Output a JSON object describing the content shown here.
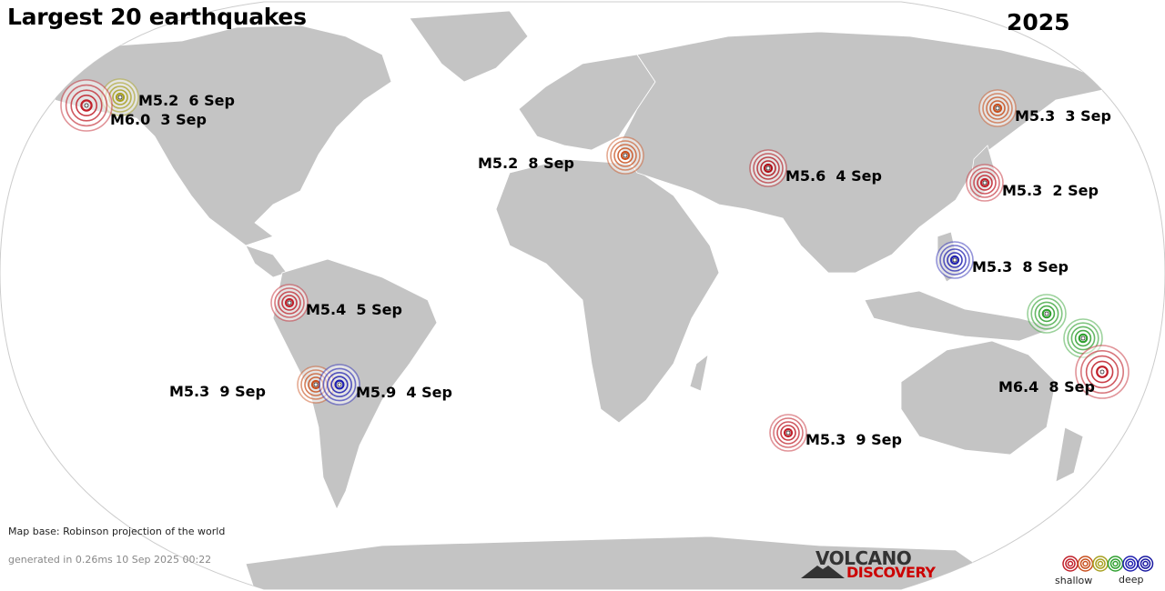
{
  "title": "Largest 20 earthquakes",
  "year": "2025",
  "quakes": [
    {
      "label": "M5.2  6 Sep",
      "color": "#a8a020"
    },
    {
      "label": "M6.0  3 Sep",
      "color": "#c0202a"
    },
    {
      "label": "M5.3  3 Sep",
      "color": "#c8501e"
    },
    {
      "label": "M5.2  8 Sep",
      "color": "#c8501e"
    },
    {
      "label": "M5.6  4 Sep",
      "color": "#b01018"
    },
    {
      "label": "M5.3  2 Sep",
      "color": "#c0202a"
    },
    {
      "label": "M5.3  8 Sep",
      "color": "#2020b0"
    },
    {
      "label": "M5.4  5 Sep",
      "color": "#c0202a"
    },
    {
      "label": "M5.3  9 Sep",
      "color": "#c8501e"
    },
    {
      "label": "M5.9  4 Sep",
      "color": "#2020b0"
    },
    {
      "label": "",
      "color": "#30a030"
    },
    {
      "label": "",
      "color": "#30a030"
    },
    {
      "label": "M6.4  8 Sep",
      "color": "#c0202a"
    },
    {
      "label": "M5.3  9 Sep",
      "color": "#c0202a"
    }
  ],
  "footer": {
    "map_base": "Map base: Robinson projection of the world",
    "generated": "generated in 0.26ms 10 Sep 2025 00:22"
  },
  "logo": {
    "top": "VOLCANO",
    "bottom": "DISCOVERY"
  },
  "legend": {
    "shallow": "shallow",
    "deep": "deep",
    "colors": [
      "#c0202a",
      "#c8501e",
      "#a8a020",
      "#30a030",
      "#2020b0",
      "#1818a0"
    ]
  }
}
